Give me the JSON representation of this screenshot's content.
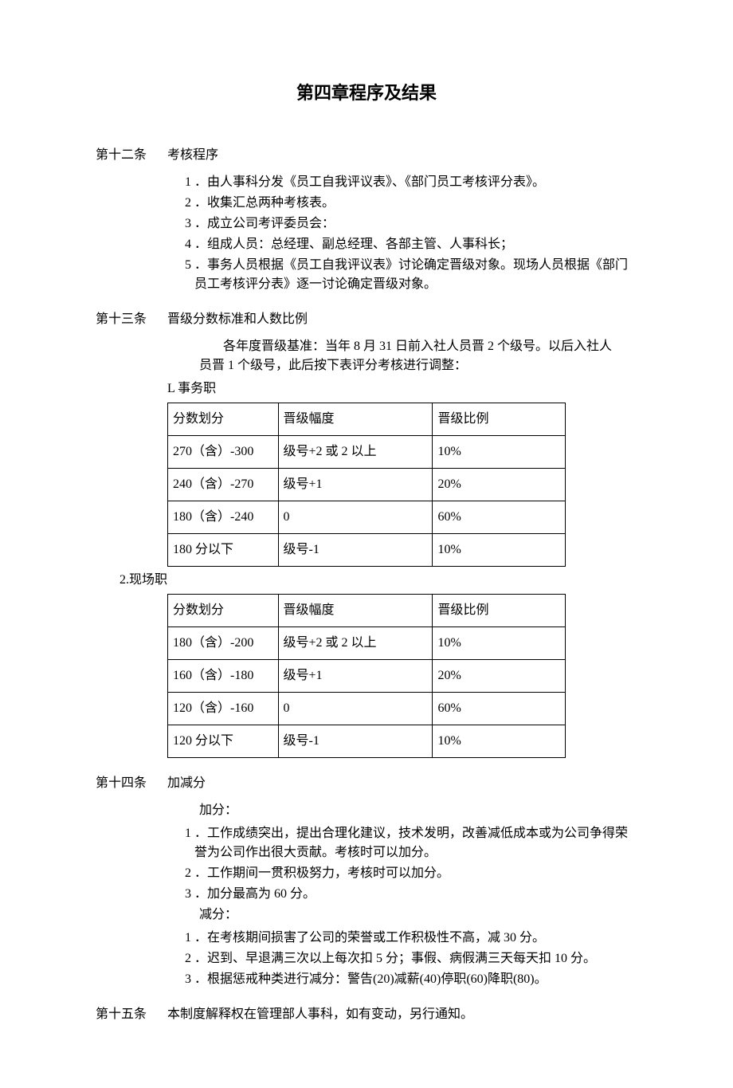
{
  "chapter_title": "第四章程序及结果",
  "article12": {
    "num": "第十二条",
    "title": "考核程序",
    "items": [
      {
        "n": "1",
        "t": "．由人事科分发《员工自我评议表》、《部门员工考核评分表》。"
      },
      {
        "n": "2",
        "t": "．收集汇总两种考核表。"
      },
      {
        "n": "3",
        "t": "．成立公司考评委员会："
      },
      {
        "n": "4",
        "t": "．组成人员：总经理、副总经理、各部主管、人事科长；"
      },
      {
        "n": "5",
        "t": "．事务人员根据《员工自我评议表》讨论确定晋级对象。现场人员根据《部门员工考核评分表》逐一讨论确定晋级对象。"
      }
    ]
  },
  "article13": {
    "num": "第十三条",
    "title": "晋级分数标准和人数比例",
    "desc_line1": "各年度晋级基准：当年 8 月 31 日前入社人员晋 2 个级号。以后入社人",
    "desc_line2": "员晋 1 个级号，此后按下表评分考核进行调整：",
    "table1_label": "L 事务职",
    "table1": {
      "header": [
        "分数划分",
        "晋级幅度",
        "晋级比例"
      ],
      "rows": [
        [
          "270（含）-300",
          "级号+2 或 2 以上",
          "10%"
        ],
        [
          "240（含）-270",
          "级号+1",
          "20%"
        ],
        [
          "180（含）-240",
          "0",
          "60%"
        ],
        [
          "180 分以下",
          "级号-1",
          "10%"
        ]
      ]
    },
    "table2_label": "2.现场职",
    "table2": {
      "header": [
        "分数划分",
        "晋级幅度",
        "晋级比例"
      ],
      "rows": [
        [
          "180（含）-200",
          "级号+2 或 2 以上",
          "10%"
        ],
        [
          "160（含）-180",
          "级号+1",
          "20%"
        ],
        [
          "120（含）-160",
          "0",
          "60%"
        ],
        [
          "120 分以下",
          "级号-1",
          "10%"
        ]
      ]
    }
  },
  "article14": {
    "num": "第十四条",
    "title": "加减分",
    "add_label": "加分：",
    "add_items": [
      {
        "n": "1",
        "t": "．工作成绩突出，提出合理化建议，技术发明，改善减低成本或为公司争得荣誉为公司作出很大贡献。考核时可以加分。"
      },
      {
        "n": "2",
        "t": "．工作期间一贯积极努力，考核时可以加分。"
      },
      {
        "n": "3",
        "t": "．加分最高为 60 分。"
      }
    ],
    "sub_label": "减分：",
    "sub_items": [
      {
        "n": "1",
        "t": "．在考核期间损害了公司的荣誉或工作积极性不高，减 30 分。"
      },
      {
        "n": "2",
        "t": "．迟到、早退满三次以上每次扣 5 分；事假、病假满三天每天扣 10 分。"
      },
      {
        "n": "3",
        "t": "．根据惩戒种类进行减分：警告(20)减薪(40)停职(60)降职(80)。"
      }
    ]
  },
  "article15": {
    "num": "第十五条",
    "text": "本制度解释权在管理部人事科，如有变动，另行通知。"
  }
}
